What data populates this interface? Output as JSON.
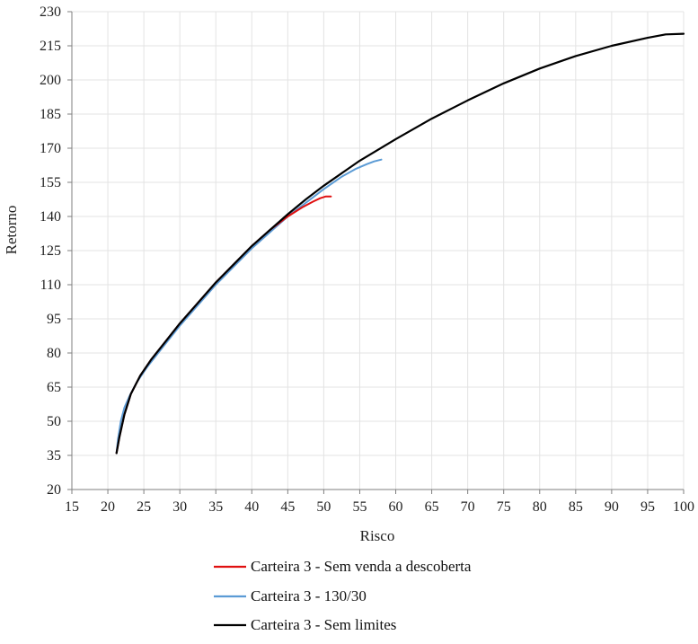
{
  "chart_data": {
    "type": "line",
    "xlabel": "Risco",
    "ylabel": "Retorno",
    "xlim": [
      15,
      100
    ],
    "ylim": [
      20,
      230
    ],
    "xticks": [
      15,
      20,
      25,
      30,
      35,
      40,
      45,
      50,
      55,
      60,
      65,
      70,
      75,
      80,
      85,
      90,
      95,
      100
    ],
    "yticks": [
      20,
      35,
      50,
      65,
      80,
      95,
      110,
      125,
      140,
      155,
      170,
      185,
      200,
      215,
      230
    ],
    "grid": true,
    "legend_position": "bottom",
    "series": [
      {
        "name": "Carteira 3 - Sem venda a descoberta",
        "color": "#e01010",
        "x": [
          21.2,
          21.6,
          22.3,
          23.2,
          24.5,
          26.0,
          28.0,
          30.0,
          32.5,
          35.0,
          37.5,
          40.0,
          42.5,
          45.0,
          47.0,
          48.5,
          49.5,
          50.3,
          51.0
        ],
        "y": [
          36,
          43,
          53,
          62,
          70,
          77,
          85,
          93,
          102,
          111,
          119,
          127,
          134,
          140,
          144,
          146.5,
          148,
          148.8,
          148.8
        ]
      },
      {
        "name": "Carteira 3 - 130/30",
        "color": "#5b9bd5",
        "x": [
          21.2,
          21.4,
          21.8,
          22.3,
          23.0,
          24.0,
          25.5,
          27.5,
          30.0,
          32.5,
          35.0,
          37.5,
          40.0,
          42.5,
          45.0,
          47.5,
          50.0,
          52.5,
          54.5,
          56.0,
          57.0,
          58.0
        ],
        "y": [
          36,
          42,
          50,
          56,
          61,
          67,
          74,
          82,
          92,
          101,
          110,
          118,
          126,
          133,
          140,
          146,
          152,
          157.5,
          161,
          163,
          164.2,
          165
        ]
      },
      {
        "name": "Carteira 3 - Sem limites",
        "color": "#000000",
        "x": [
          21.2,
          21.6,
          22.3,
          23.2,
          24.5,
          26.0,
          28.0,
          30.0,
          32.5,
          35.0,
          37.5,
          40.0,
          42.5,
          45.0,
          47.5,
          50.0,
          55.0,
          60.0,
          65.0,
          70.0,
          75.0,
          80.0,
          85.0,
          90.0,
          95.0,
          97.5,
          100.0
        ],
        "y": [
          36,
          43,
          53,
          62,
          70,
          77,
          85,
          93,
          102,
          111,
          119,
          127,
          134,
          141,
          147.5,
          153.5,
          164.5,
          174,
          183,
          191,
          198.5,
          205,
          210.5,
          215,
          218.5,
          220,
          220.3
        ]
      }
    ]
  }
}
